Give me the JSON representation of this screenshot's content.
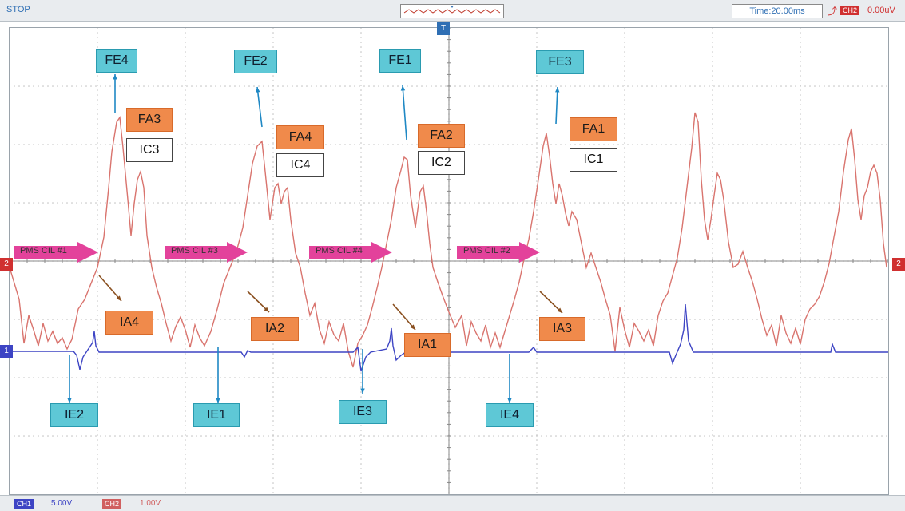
{
  "status": "STOP",
  "time_div": "Time:20.00ms",
  "trigger": {
    "channel": "CH2",
    "level": "0.00uV"
  },
  "channels": [
    {
      "name": "CH1",
      "scale": "5.00V",
      "color": "#3d44c4"
    },
    {
      "name": "CH2",
      "scale": "1.00V",
      "color": "#d06060"
    }
  ],
  "markers": {
    "ch2": "2",
    "ch1": "1",
    "trigger_top": "T"
  },
  "labels": {
    "fe": [
      "FE4",
      "FE2",
      "FE1",
      "FE3"
    ],
    "fa": [
      "FA3",
      "FA4",
      "FA2",
      "FA1"
    ],
    "ic": [
      "IC3",
      "IC4",
      "IC2",
      "IC1"
    ],
    "ia": [
      "IA4",
      "IA2",
      "IA1",
      "IA3"
    ],
    "ie": [
      "IE2",
      "IE1",
      "IE3",
      "IE4"
    ],
    "pms": [
      "PMS CIL #1",
      "PMS CIL #3",
      "PMS CIL #4",
      "PMS CIL #2"
    ]
  },
  "colors": {
    "red_trace": "#d9746e",
    "blue_trace": "#3d44c4",
    "cyan_label": "#5ec8d6",
    "orange_label": "#f08a4b",
    "pms_arrow": "#e3429b",
    "grid": "#c0c0c0",
    "accent": "#2f6fb4"
  }
}
